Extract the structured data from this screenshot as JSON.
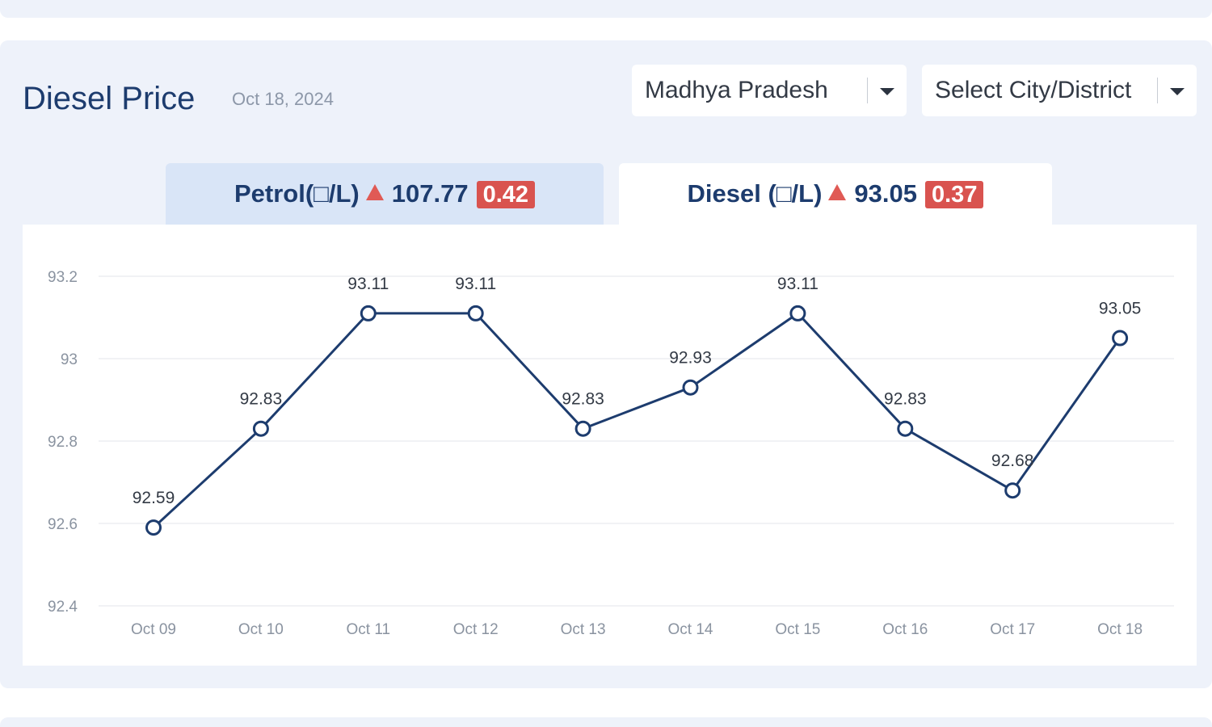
{
  "header": {
    "title": "Diesel Price",
    "date": "Oct 18, 2024"
  },
  "state_select": {
    "value": "Madhya Pradesh"
  },
  "city_select": {
    "value": "Select City/District"
  },
  "tabs": {
    "petrol": {
      "label": "Petrol(□/L)",
      "price": "107.77",
      "change": "0.42",
      "trend": "up-arrow-icon"
    },
    "diesel": {
      "label": "Diesel (□/L)",
      "price": "93.05",
      "change": "0.37",
      "trend": "up-arrow-icon",
      "active": true
    }
  },
  "colors": {
    "accent": "#1d3c6e",
    "line": "#1d3c6e",
    "badge": "#d9534f",
    "panel": "#eef2fa"
  },
  "chart_data": {
    "type": "line",
    "categories": [
      "Oct 09",
      "Oct 10",
      "Oct 11",
      "Oct 12",
      "Oct 13",
      "Oct 14",
      "Oct 15",
      "Oct 16",
      "Oct 17",
      "Oct 18"
    ],
    "series": [
      {
        "values": [
          92.59,
          92.83,
          93.11,
          93.11,
          92.83,
          92.93,
          93.11,
          92.83,
          92.68,
          93.05
        ],
        "labels": [
          "92.59",
          "92.83",
          "93.11",
          "93.11",
          "92.83",
          "92.93",
          "93.11",
          "92.83",
          "92.68",
          "93.05"
        ]
      }
    ],
    "y_ticks": [
      "92.4",
      "92.6",
      "92.8",
      "93",
      "93.2"
    ],
    "ylim": [
      92.4,
      93.2
    ],
    "grid": true,
    "legend": "none",
    "title": "",
    "xlabel": "",
    "ylabel": ""
  }
}
